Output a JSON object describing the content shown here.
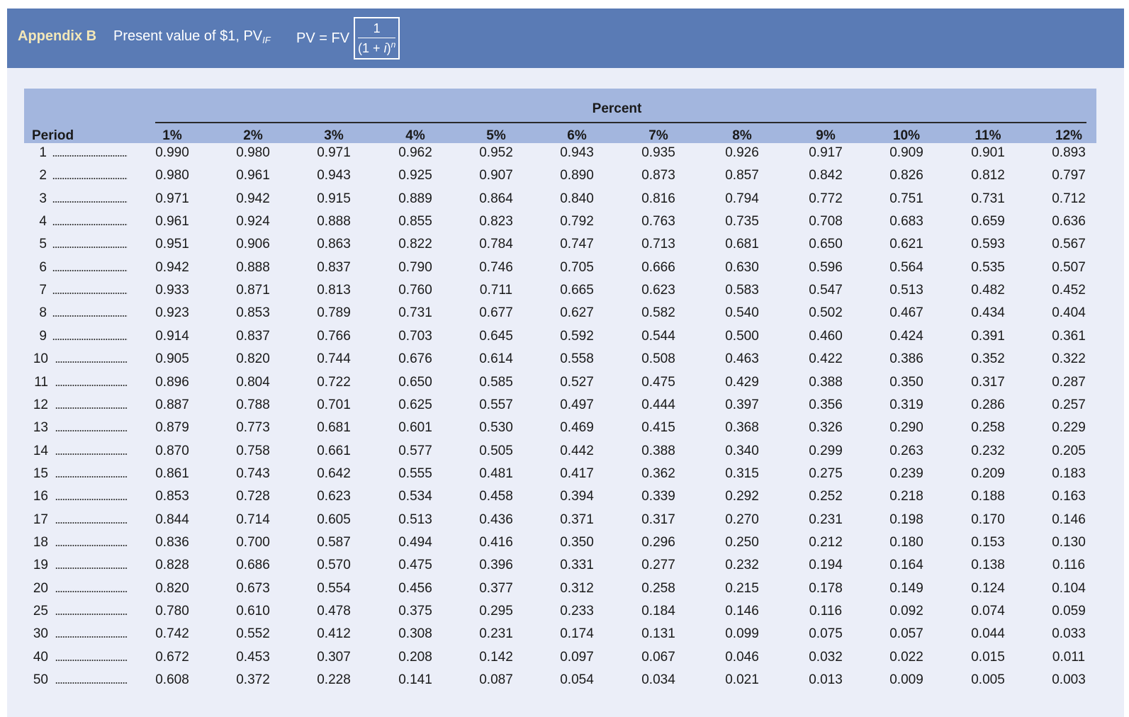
{
  "banner": {
    "appendix": "Appendix B",
    "title": "Present value of $1, PV",
    "title_sub": "IF",
    "formula_lhs": "PV = FV",
    "formula_numerator": "1",
    "formula_denominator_a": "(1 + ",
    "formula_denominator_i": "i",
    "formula_denominator_b": ")",
    "formula_exponent": "n"
  },
  "table": {
    "group_header": "Percent",
    "period_header": "Period",
    "columns": [
      "1%",
      "2%",
      "3%",
      "4%",
      "5%",
      "6%",
      "7%",
      "8%",
      "9%",
      "10%",
      "11%",
      "12%"
    ],
    "rows": [
      {
        "period": "1",
        "values": [
          "0.990",
          "0.980",
          "0.971",
          "0.962",
          "0.952",
          "0.943",
          "0.935",
          "0.926",
          "0.917",
          "0.909",
          "0.901",
          "0.893"
        ]
      },
      {
        "period": "2",
        "values": [
          "0.980",
          "0.961",
          "0.943",
          "0.925",
          "0.907",
          "0.890",
          "0.873",
          "0.857",
          "0.842",
          "0.826",
          "0.812",
          "0.797"
        ]
      },
      {
        "period": "3",
        "values": [
          "0.971",
          "0.942",
          "0.915",
          "0.889",
          "0.864",
          "0.840",
          "0.816",
          "0.794",
          "0.772",
          "0.751",
          "0.731",
          "0.712"
        ]
      },
      {
        "period": "4",
        "values": [
          "0.961",
          "0.924",
          "0.888",
          "0.855",
          "0.823",
          "0.792",
          "0.763",
          "0.735",
          "0.708",
          "0.683",
          "0.659",
          "0.636"
        ]
      },
      {
        "period": "5",
        "values": [
          "0.951",
          "0.906",
          "0.863",
          "0.822",
          "0.784",
          "0.747",
          "0.713",
          "0.681",
          "0.650",
          "0.621",
          "0.593",
          "0.567"
        ]
      },
      {
        "period": "6",
        "values": [
          "0.942",
          "0.888",
          "0.837",
          "0.790",
          "0.746",
          "0.705",
          "0.666",
          "0.630",
          "0.596",
          "0.564",
          "0.535",
          "0.507"
        ]
      },
      {
        "period": "7",
        "values": [
          "0.933",
          "0.871",
          "0.813",
          "0.760",
          "0.711",
          "0.665",
          "0.623",
          "0.583",
          "0.547",
          "0.513",
          "0.482",
          "0.452"
        ]
      },
      {
        "period": "8",
        "values": [
          "0.923",
          "0.853",
          "0.789",
          "0.731",
          "0.677",
          "0.627",
          "0.582",
          "0.540",
          "0.502",
          "0.467",
          "0.434",
          "0.404"
        ]
      },
      {
        "period": "9",
        "values": [
          "0.914",
          "0.837",
          "0.766",
          "0.703",
          "0.645",
          "0.592",
          "0.544",
          "0.500",
          "0.460",
          "0.424",
          "0.391",
          "0.361"
        ]
      },
      {
        "period": "10",
        "values": [
          "0.905",
          "0.820",
          "0.744",
          "0.676",
          "0.614",
          "0.558",
          "0.508",
          "0.463",
          "0.422",
          "0.386",
          "0.352",
          "0.322"
        ]
      },
      {
        "period": "11",
        "values": [
          "0.896",
          "0.804",
          "0.722",
          "0.650",
          "0.585",
          "0.527",
          "0.475",
          "0.429",
          "0.388",
          "0.350",
          "0.317",
          "0.287"
        ]
      },
      {
        "period": "12",
        "values": [
          "0.887",
          "0.788",
          "0.701",
          "0.625",
          "0.557",
          "0.497",
          "0.444",
          "0.397",
          "0.356",
          "0.319",
          "0.286",
          "0.257"
        ]
      },
      {
        "period": "13",
        "values": [
          "0.879",
          "0.773",
          "0.681",
          "0.601",
          "0.530",
          "0.469",
          "0.415",
          "0.368",
          "0.326",
          "0.290",
          "0.258",
          "0.229"
        ]
      },
      {
        "period": "14",
        "values": [
          "0.870",
          "0.758",
          "0.661",
          "0.577",
          "0.505",
          "0.442",
          "0.388",
          "0.340",
          "0.299",
          "0.263",
          "0.232",
          "0.205"
        ]
      },
      {
        "period": "15",
        "values": [
          "0.861",
          "0.743",
          "0.642",
          "0.555",
          "0.481",
          "0.417",
          "0.362",
          "0.315",
          "0.275",
          "0.239",
          "0.209",
          "0.183"
        ]
      },
      {
        "period": "16",
        "values": [
          "0.853",
          "0.728",
          "0.623",
          "0.534",
          "0.458",
          "0.394",
          "0.339",
          "0.292",
          "0.252",
          "0.218",
          "0.188",
          "0.163"
        ]
      },
      {
        "period": "17",
        "values": [
          "0.844",
          "0.714",
          "0.605",
          "0.513",
          "0.436",
          "0.371",
          "0.317",
          "0.270",
          "0.231",
          "0.198",
          "0.170",
          "0.146"
        ]
      },
      {
        "period": "18",
        "values": [
          "0.836",
          "0.700",
          "0.587",
          "0.494",
          "0.416",
          "0.350",
          "0.296",
          "0.250",
          "0.212",
          "0.180",
          "0.153",
          "0.130"
        ]
      },
      {
        "period": "19",
        "values": [
          "0.828",
          "0.686",
          "0.570",
          "0.475",
          "0.396",
          "0.331",
          "0.277",
          "0.232",
          "0.194",
          "0.164",
          "0.138",
          "0.116"
        ]
      },
      {
        "period": "20",
        "values": [
          "0.820",
          "0.673",
          "0.554",
          "0.456",
          "0.377",
          "0.312",
          "0.258",
          "0.215",
          "0.178",
          "0.149",
          "0.124",
          "0.104"
        ]
      },
      {
        "period": "25",
        "values": [
          "0.780",
          "0.610",
          "0.478",
          "0.375",
          "0.295",
          "0.233",
          "0.184",
          "0.146",
          "0.116",
          "0.092",
          "0.074",
          "0.059"
        ]
      },
      {
        "period": "30",
        "values": [
          "0.742",
          "0.552",
          "0.412",
          "0.308",
          "0.231",
          "0.174",
          "0.131",
          "0.099",
          "0.075",
          "0.057",
          "0.044",
          "0.033"
        ]
      },
      {
        "period": "40",
        "values": [
          "0.672",
          "0.453",
          "0.307",
          "0.208",
          "0.142",
          "0.097",
          "0.067",
          "0.046",
          "0.032",
          "0.022",
          "0.015",
          "0.011"
        ]
      },
      {
        "period": "50",
        "values": [
          "0.608",
          "0.372",
          "0.228",
          "0.141",
          "0.087",
          "0.054",
          "0.034",
          "0.021",
          "0.013",
          "0.009",
          "0.005",
          "0.003"
        ]
      }
    ]
  },
  "colors": {
    "banner": "#5a7bb5",
    "header_band": "#a3b6de",
    "page_background": "#ebeef8",
    "appendix_text": "#f3e7b8"
  }
}
